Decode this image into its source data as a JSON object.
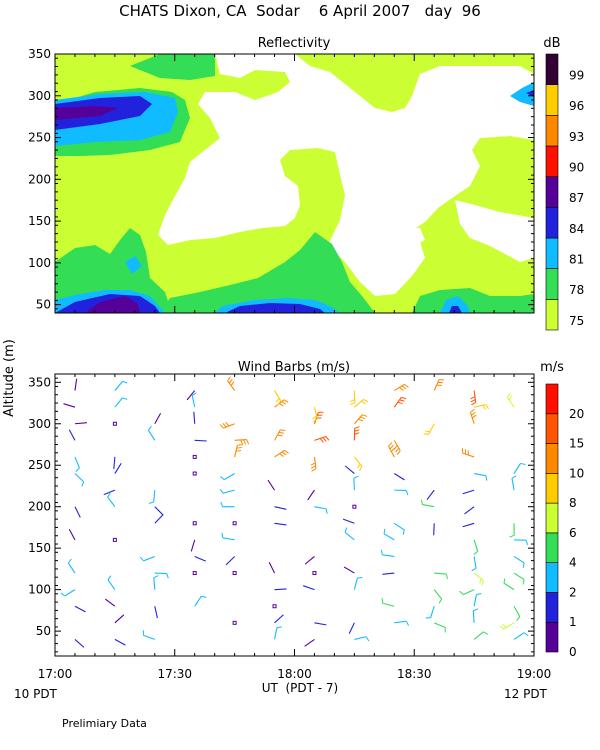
{
  "title": "CHATS Dixon, CA  Sodar    6 April 2007   day  96",
  "footnote": "Prelimiary Data",
  "y_axis_label": "Altitude (m)",
  "x_axis_label": "UT  (PDT - 7)",
  "x_left_note": "10 PDT",
  "x_right_note": "12 PDT",
  "chart_data": [
    {
      "type": "heatmap",
      "title": "Reflectivity",
      "colorbar_unit": "dB",
      "x_ticks": [
        "17:00",
        "17:30",
        "18:00",
        "18:30",
        "19:00"
      ],
      "y_ticks": [
        50,
        100,
        150,
        200,
        250,
        300,
        350
      ],
      "ylim": [
        40,
        350
      ],
      "levels": [
        75,
        78,
        81,
        84,
        87,
        90,
        93,
        96,
        99
      ],
      "level_colors": [
        "#ccff33",
        "#33dd55",
        "#11bbff",
        "#2222dd",
        "#550099",
        "#ff1100",
        "#ff8800",
        "#ffcc00",
        "#330033"
      ],
      "regions": [
        {
          "level": 75,
          "desc": "background, most of the field"
        },
        {
          "level": 78,
          "desc": "band near 250-310 m at 17:00-17:20; low band 40-130 m 17:00-17:25 and 17:45-18:30"
        },
        {
          "level": 81,
          "desc": "cores near 270 m and 50-60 m"
        },
        {
          "level": 84,
          "desc": "core near 270 m at 17:05; low 40-55 m"
        },
        {
          "level": 87,
          "desc": "core near 275 m at 17:00-17:10; 40-45 m at 17:10-17:20"
        }
      ]
    },
    {
      "type": "scatter",
      "title": "Wind Barbs (m/s)",
      "colorbar_unit": "m/s",
      "x_ticks": [
        "17:00",
        "17:30",
        "18:00",
        "18:30",
        "19:00"
      ],
      "y_ticks": [
        50,
        100,
        150,
        200,
        250,
        300,
        350
      ],
      "ylim": [
        20,
        360
      ],
      "levels": [
        0,
        1,
        2,
        4,
        6,
        8,
        10,
        15,
        20
      ],
      "level_colors": [
        "#550099",
        "#2222dd",
        "#11bbff",
        "#33dd55",
        "#ccff33",
        "#ffcc00",
        "#ff8800",
        "#ff5500",
        "#ff1100"
      ],
      "times": [
        "17:05",
        "17:15",
        "17:25",
        "17:35",
        "17:45",
        "17:55",
        "18:05",
        "18:15",
        "18:25",
        "18:35",
        "18:45",
        "18:55"
      ],
      "altitudes": [
        40,
        60,
        80,
        100,
        120,
        140,
        160,
        180,
        200,
        220,
        240,
        260,
        280,
        300,
        320,
        340
      ]
    }
  ]
}
